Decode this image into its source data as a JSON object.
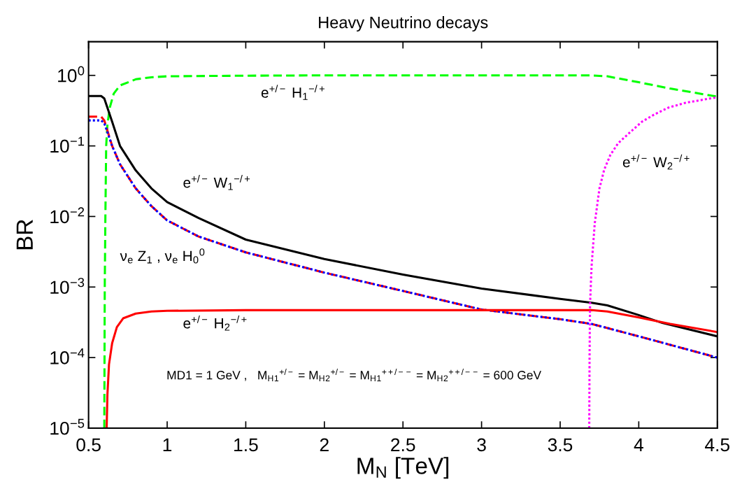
{
  "chart_data": {
    "type": "line",
    "title": "Heavy Neutrino decays",
    "xlabel": "M$_{N}$ [TeV]",
    "ylabel": "BR",
    "log": "y",
    "grid": false,
    "legend": false,
    "marker": "none",
    "xlim": [
      0.5,
      4.5
    ],
    "xticks": [
      0.5,
      1,
      1.5,
      2,
      2.5,
      3,
      3.5,
      4,
      4.5
    ],
    "ylim": [
      1e-05,
      3
    ],
    "yticks": [
      {
        "value": 1,
        "label": "10$^{0}$"
      },
      {
        "value": 0.1,
        "label": "10$^{−1}$"
      },
      {
        "value": 0.01,
        "label": "10$^{−2}$"
      },
      {
        "value": 0.001,
        "label": "10$^{−3}$"
      },
      {
        "value": 0.0001,
        "label": "10$^{−4}$"
      },
      {
        "value": 1e-05,
        "label": "10$^{−5}$"
      }
    ],
    "series": [
      {
        "color": "#00ff00",
        "line_style": "dashed",
        "x": [
          0.6,
          0.603,
          0.607,
          0.612,
          0.62,
          0.635,
          0.66,
          0.7,
          0.8,
          0.9,
          1.0,
          1.5,
          2,
          3.7,
          3.8,
          4.0,
          4.2,
          4.5
        ],
        "values": [
          1e-05,
          0.001,
          0.01,
          0.1,
          0.2,
          0.35,
          0.55,
          0.72,
          0.88,
          0.94,
          0.97,
          0.99,
          1,
          1,
          0.97,
          0.8,
          0.65,
          0.5
        ]
      },
      {
        "color": "#000000",
        "line_style": "solid",
        "x": [
          0.5,
          0.58,
          0.6,
          0.65,
          0.7,
          0.8,
          0.9,
          1.0,
          1.2,
          1.5,
          2,
          2.5,
          3,
          3.5,
          3.7,
          3.8,
          4.0,
          4.15,
          4.5
        ],
        "values": [
          0.51,
          0.51,
          0.47,
          0.22,
          0.1,
          0.045,
          0.025,
          0.016,
          0.0095,
          0.0047,
          0.0025,
          0.0015,
          0.00095,
          0.00068,
          0.0006,
          0.00055,
          0.0004,
          0.00031,
          0.0002
        ]
      },
      {
        "color": "#ff0000",
        "line_style": "dashed",
        "x": [
          0.5,
          0.58,
          0.6,
          0.65,
          0.7,
          0.8,
          0.9,
          1.0,
          1.2,
          1.5,
          2,
          2.5,
          3,
          3.5,
          3.7,
          4.0,
          4.5
        ],
        "values": [
          0.26,
          0.26,
          0.23,
          0.1,
          0.055,
          0.025,
          0.014,
          0.0088,
          0.0052,
          0.0031,
          0.0016,
          0.00088,
          0.00048,
          0.00035,
          0.0003,
          0.0002,
          0.0001
        ]
      },
      {
        "color": "#0000ff",
        "line_style": "dotted",
        "x": [
          0.5,
          0.58,
          0.6,
          0.65,
          0.7,
          0.8,
          0.9,
          1.0,
          1.2,
          1.5,
          2,
          2.5,
          3,
          3.5,
          3.7,
          4.0,
          4.5
        ],
        "values": [
          0.23,
          0.23,
          0.21,
          0.1,
          0.055,
          0.025,
          0.014,
          0.0088,
          0.0052,
          0.0031,
          0.0016,
          0.00088,
          0.00048,
          0.00035,
          0.0003,
          0.0002,
          0.0001
        ]
      },
      {
        "color": "#ff0000",
        "line_style": "solid",
        "x": [
          0.615,
          0.62,
          0.63,
          0.65,
          0.68,
          0.72,
          0.8,
          0.9,
          1.0,
          1.5,
          2,
          3,
          3.7,
          3.8,
          4.0,
          4.2,
          4.5
        ],
        "values": [
          1e-05,
          3e-05,
          8e-05,
          0.00016,
          0.00027,
          0.00036,
          0.00042,
          0.00045,
          0.00046,
          0.00047,
          0.00047,
          0.00047,
          0.00047,
          0.00045,
          0.00037,
          0.0003,
          0.00023
        ]
      },
      {
        "color": "#ff00ff",
        "line_style": "dotted",
        "x": [
          3.685,
          3.687,
          3.69,
          3.7,
          3.72,
          3.75,
          3.78,
          3.82,
          3.87,
          3.95,
          4.02,
          4.1,
          4.19,
          4.3,
          4.5
        ],
        "values": [
          1e-05,
          0.0001,
          0.00056,
          0.002,
          0.008,
          0.025,
          0.046,
          0.075,
          0.11,
          0.16,
          0.22,
          0.28,
          0.35,
          0.41,
          0.49
        ]
      }
    ],
    "annotations": [
      "e$^{+/−}$ H$_{1}$$^{−/+}$",
      "e$^{+/−}$ W$_{1}$$^{−/+}$",
      "ν$_{e}$ Z$_{1}$ , ν$_{e}$ H$_{0}$$^{0}$",
      "e$^{+/−}$ H$_{2}$$^{−/+}$",
      "e$^{+/−}$ W$_{2}$$^{−/+}$",
      "MD1 = 1 GeV ,   M$_{H}$$_{1}$$^{+/−}$ = M$_{H}$$_{2}$$^{+/−}$ = M$_{H}$$_{1}$$^{++/−−}$ = M$_{H}$$_{2}$$^{++/−−}$ = 600 GeV"
    ]
  }
}
